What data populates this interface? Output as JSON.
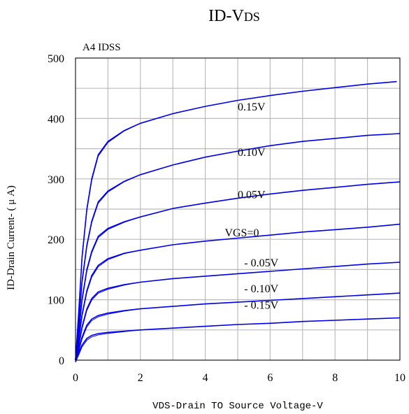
{
  "chart_data": {
    "type": "line",
    "title_main": "ID-V",
    "title_sub": "DS",
    "inset_label": "A4 IDSS",
    "xlabel": "VDS-Drain TO Source Voltage-V",
    "ylabel": "ID-Drain Current- ( μ A)",
    "xlim": [
      0,
      10
    ],
    "ylim": [
      0,
      500
    ],
    "xticks": [
      0,
      2,
      4,
      6,
      8,
      10
    ],
    "yticks": [
      0,
      100,
      200,
      300,
      400,
      500
    ],
    "grid": true,
    "line_color": "#0000ee",
    "grid_color": "#bbbbbb",
    "series": [
      {
        "name": "0.15V",
        "x": [
          0,
          0.1,
          0.2,
          0.35,
          0.5,
          0.7,
          1.0,
          1.5,
          2,
          3,
          4,
          5,
          6,
          7,
          8,
          9,
          9.9
        ],
        "y": [
          0,
          80,
          170,
          250,
          300,
          340,
          362,
          380,
          392,
          408,
          420,
          430,
          438,
          445,
          451,
          457,
          461
        ]
      },
      {
        "name": "0.10V",
        "x": [
          0,
          0.1,
          0.2,
          0.35,
          0.5,
          0.7,
          1.0,
          1.5,
          2,
          3,
          4,
          5,
          6,
          7,
          8,
          9,
          10
        ],
        "y": [
          0,
          60,
          130,
          190,
          230,
          262,
          280,
          296,
          307,
          323,
          336,
          346,
          355,
          362,
          367,
          372,
          375
        ]
      },
      {
        "name": "0.05V",
        "x": [
          0,
          0.1,
          0.2,
          0.35,
          0.5,
          0.7,
          1.0,
          1.5,
          2,
          3,
          4,
          5,
          6,
          7,
          8,
          9,
          10
        ],
        "y": [
          0,
          45,
          100,
          150,
          180,
          205,
          218,
          229,
          237,
          251,
          260,
          268,
          275,
          281,
          286,
          291,
          295
        ]
      },
      {
        "name": "VGS=0",
        "x": [
          0,
          0.1,
          0.2,
          0.35,
          0.5,
          0.7,
          1.0,
          1.5,
          2,
          3,
          4,
          5,
          6,
          7,
          8,
          9,
          10
        ],
        "y": [
          0,
          35,
          75,
          115,
          140,
          157,
          168,
          177,
          182,
          191,
          197,
          202,
          207,
          212,
          216,
          220,
          225
        ]
      },
      {
        "name": "- 0.05V",
        "x": [
          0,
          0.1,
          0.2,
          0.35,
          0.5,
          0.7,
          1.0,
          1.5,
          2,
          3,
          4,
          5,
          6,
          7,
          8,
          9,
          10
        ],
        "y": [
          0,
          25,
          55,
          85,
          102,
          113,
          119,
          125,
          129,
          135,
          139,
          143,
          147,
          151,
          155,
          159,
          162
        ]
      },
      {
        "name": "- 0.10V",
        "x": [
          0,
          0.1,
          0.2,
          0.35,
          0.5,
          0.7,
          1.0,
          1.5,
          2,
          3,
          4,
          5,
          6,
          7,
          8,
          9,
          10
        ],
        "y": [
          0,
          18,
          38,
          58,
          68,
          74,
          78,
          82,
          85,
          89,
          93,
          96,
          99,
          102,
          105,
          108,
          111
        ]
      },
      {
        "name": "- 0.15V",
        "x": [
          0,
          0.1,
          0.2,
          0.35,
          0.5,
          0.7,
          1.0,
          1.5,
          2,
          3,
          4,
          5,
          6,
          7,
          8,
          9,
          10
        ],
        "y": [
          0,
          12,
          25,
          36,
          41,
          44,
          46,
          48,
          50,
          53,
          56,
          59,
          61,
          64,
          66,
          68,
          70
        ]
      }
    ],
    "labels": [
      {
        "text": "0.15V",
        "x": 5.0,
        "y": 413
      },
      {
        "text": "0.10V",
        "x": 5.0,
        "y": 338
      },
      {
        "text": "0.05V",
        "x": 5.0,
        "y": 268
      },
      {
        "text": "VGS=0",
        "x": 4.6,
        "y": 205
      },
      {
        "text": "- 0.05V",
        "x": 5.2,
        "y": 155
      },
      {
        "text": "- 0.10V",
        "x": 5.2,
        "y": 112
      },
      {
        "text": "- 0.15V",
        "x": 5.2,
        "y": 85
      }
    ]
  }
}
